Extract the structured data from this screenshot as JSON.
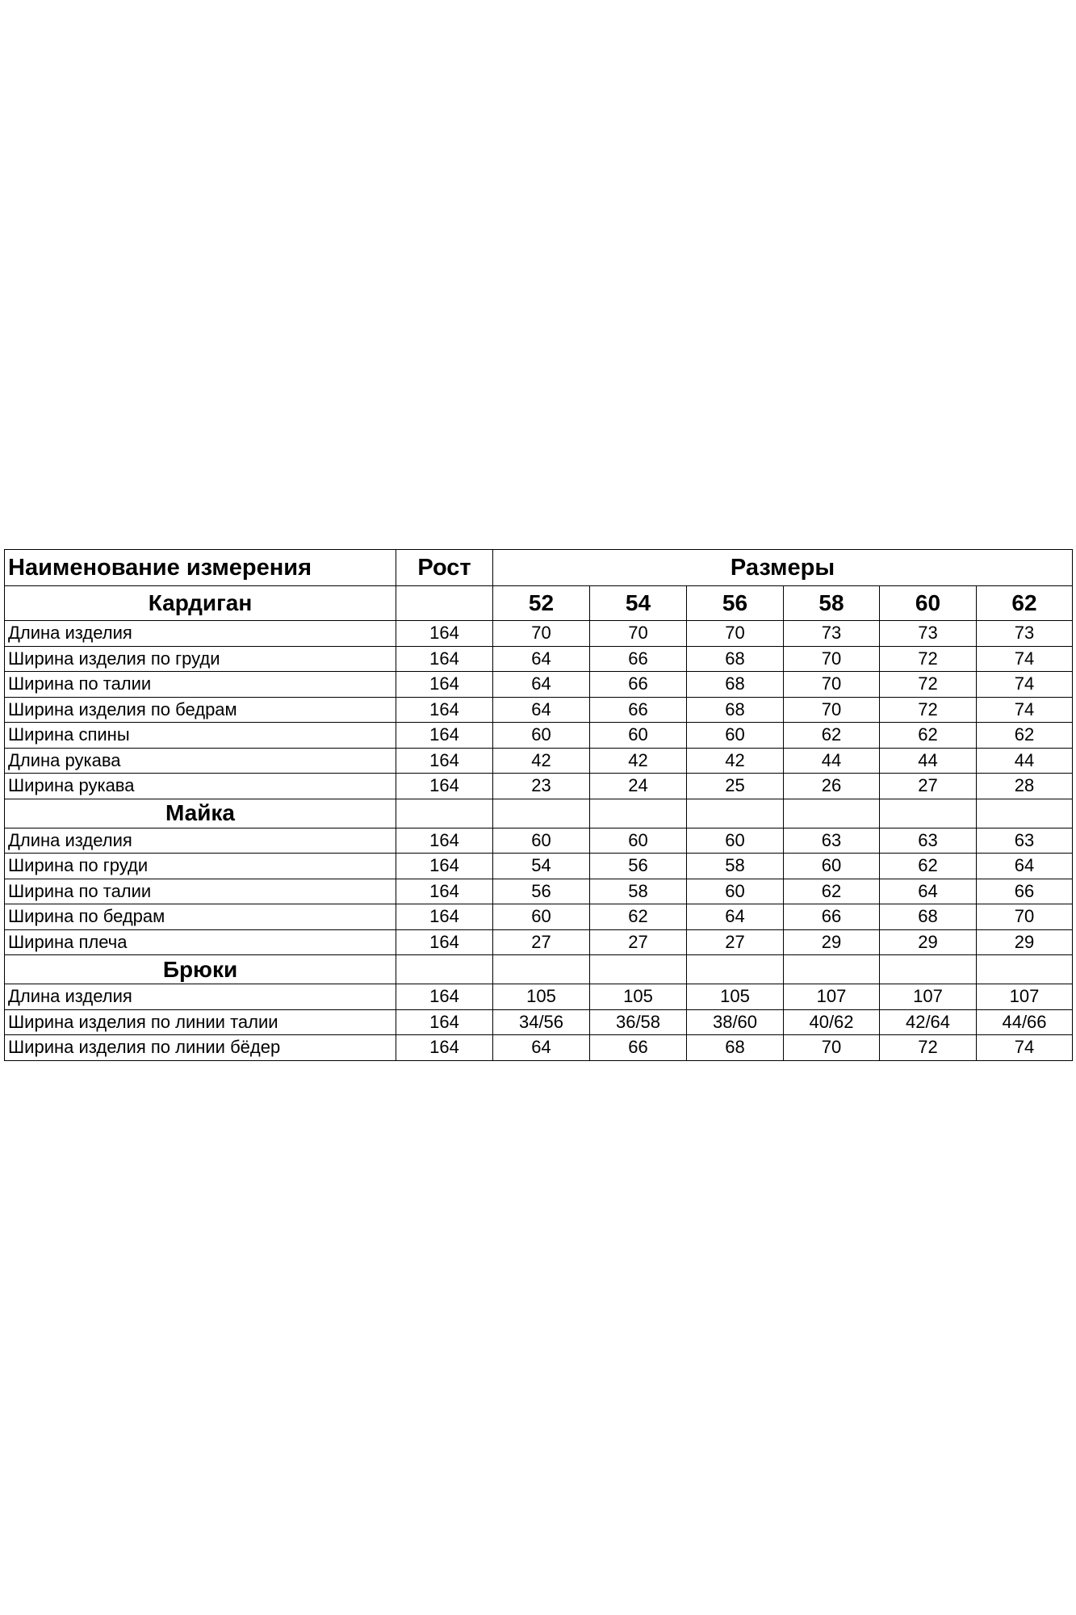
{
  "header": {
    "name": "Наименование измерения",
    "height": "Рост",
    "sizes": "Размеры"
  },
  "size_labels": [
    52,
    54,
    56,
    58,
    60,
    62
  ],
  "sections": [
    {
      "title": "Кардиган",
      "rows": [
        {
          "name": "Длина изделия",
          "height": 164,
          "values": [
            70,
            70,
            70,
            73,
            73,
            73
          ]
        },
        {
          "name": "Ширина изделия по груди",
          "height": 164,
          "values": [
            64,
            66,
            68,
            70,
            72,
            74
          ]
        },
        {
          "name": "Ширина по талии",
          "height": 164,
          "values": [
            64,
            66,
            68,
            70,
            72,
            74
          ]
        },
        {
          "name": "Ширина изделия по бедрам",
          "height": 164,
          "values": [
            64,
            66,
            68,
            70,
            72,
            74
          ]
        },
        {
          "name": "Ширина спины",
          "height": 164,
          "values": [
            60,
            60,
            60,
            62,
            62,
            62
          ]
        },
        {
          "name": "Длина рукава",
          "height": 164,
          "values": [
            42,
            42,
            42,
            44,
            44,
            44
          ]
        },
        {
          "name": "Ширина рукава",
          "height": 164,
          "values": [
            23,
            24,
            25,
            26,
            27,
            28
          ]
        }
      ]
    },
    {
      "title": "Майка",
      "rows": [
        {
          "name": "Длина изделия",
          "height": 164,
          "values": [
            60,
            60,
            60,
            63,
            63,
            63
          ]
        },
        {
          "name": "Ширина по груди",
          "height": 164,
          "values": [
            54,
            56,
            58,
            60,
            62,
            64
          ]
        },
        {
          "name": "Ширина по талии",
          "height": 164,
          "values": [
            56,
            58,
            60,
            62,
            64,
            66
          ]
        },
        {
          "name": "Ширина по бедрам",
          "height": 164,
          "values": [
            60,
            62,
            64,
            66,
            68,
            70
          ]
        },
        {
          "name": "Ширина плеча",
          "height": 164,
          "values": [
            27,
            27,
            27,
            29,
            29,
            29
          ]
        }
      ]
    },
    {
      "title": "Брюки",
      "rows": [
        {
          "name": "Длина изделия",
          "height": 164,
          "values": [
            105,
            105,
            105,
            107,
            107,
            107
          ]
        },
        {
          "name": "Ширина изделия по линии талии",
          "height": 164,
          "values": [
            "34/56",
            "36/58",
            "38/60",
            "40/62",
            "42/64",
            "44/66"
          ]
        },
        {
          "name": "Ширина изделия по линии бёдер",
          "height": 164,
          "values": [
            64,
            66,
            68,
            70,
            72,
            74
          ]
        }
      ]
    }
  ]
}
